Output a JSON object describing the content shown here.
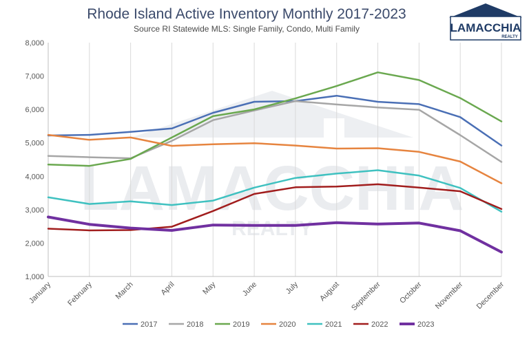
{
  "brand": {
    "name": "LAMACCHIA",
    "tagline": "REALTY",
    "color": "#1f3b66"
  },
  "chart_data": {
    "type": "line",
    "title": "Rhode Island Active Inventory Monthly 2017-2023",
    "subtitle": "Source RI Statewide MLS: Single Family, Condo, Multi Family",
    "xlabel": "",
    "ylabel": "",
    "ylim": [
      1000,
      8000
    ],
    "yticks": [
      1000,
      2000,
      3000,
      4000,
      5000,
      6000,
      7000,
      8000
    ],
    "ytick_labels": [
      "1,000",
      "2,000",
      "3,000",
      "4,000",
      "5,000",
      "6,000",
      "7,000",
      "8,000"
    ],
    "grid": "vertical",
    "legend_position": "bottom",
    "categories": [
      "January",
      "February",
      "March",
      "April",
      "May",
      "June",
      "July",
      "August",
      "September",
      "October",
      "November",
      "December"
    ],
    "series": [
      {
        "name": "2017",
        "color": "#4a6fb5",
        "values": [
          5220,
          5240,
          5330,
          5430,
          5900,
          6230,
          6250,
          6410,
          6230,
          6160,
          5770,
          4920
        ]
      },
      {
        "name": "2018",
        "color": "#a6a6a6",
        "values": [
          4610,
          4570,
          4540,
          5060,
          5680,
          5970,
          6250,
          6150,
          6060,
          5990,
          5230,
          4430
        ]
      },
      {
        "name": "2019",
        "color": "#6aa84f",
        "values": [
          4350,
          4310,
          4520,
          5160,
          5800,
          6000,
          6330,
          6700,
          7110,
          6880,
          6340,
          5640
        ]
      },
      {
        "name": "2020",
        "color": "#e6843f",
        "values": [
          5240,
          5090,
          5160,
          4910,
          4960,
          4990,
          4920,
          4830,
          4840,
          4730,
          4440,
          3790
        ]
      },
      {
        "name": "2021",
        "color": "#3fc1c0",
        "values": [
          3370,
          3170,
          3250,
          3140,
          3270,
          3660,
          3950,
          4080,
          4180,
          4020,
          3650,
          2940
        ]
      },
      {
        "name": "2022",
        "color": "#a11d1d",
        "values": [
          2430,
          2380,
          2390,
          2490,
          2960,
          3470,
          3670,
          3690,
          3760,
          3660,
          3550,
          3020
        ]
      },
      {
        "name": "2023",
        "color": "#7030a0",
        "values": [
          2780,
          2560,
          2450,
          2380,
          2540,
          2530,
          2530,
          2610,
          2570,
          2600,
          2370,
          1730
        ]
      }
    ]
  }
}
